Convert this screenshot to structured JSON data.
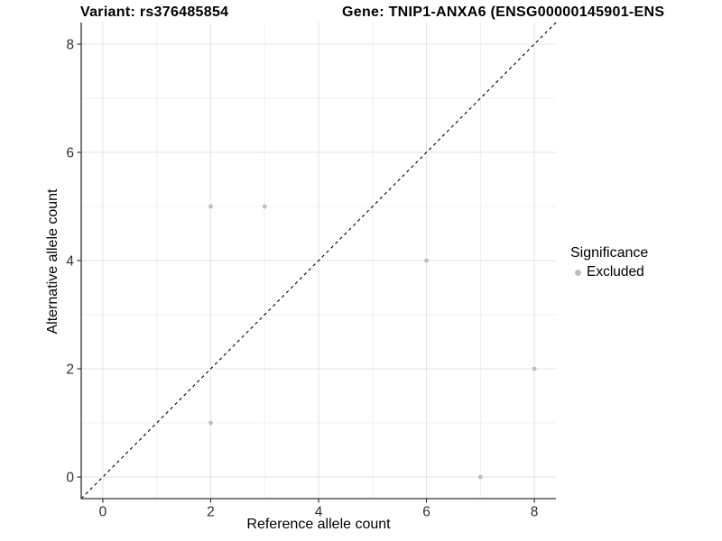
{
  "chart_data": {
    "type": "scatter",
    "title_left": "Variant: rs376485854",
    "title_right": "Gene: TNIP1-ANXA6 (ENSG00000145901-ENS",
    "xlabel": "Reference allele count",
    "ylabel": "Alternative allele count",
    "xlim": [
      -0.4,
      8.4
    ],
    "ylim": [
      -0.4,
      8.4
    ],
    "x_ticks": [
      0,
      2,
      4,
      6,
      8
    ],
    "y_ticks": [
      0,
      2,
      4,
      6,
      8
    ],
    "x_minor_ticks": [
      1,
      3,
      5,
      7
    ],
    "y_minor_ticks": [
      1,
      3,
      5,
      7
    ],
    "grid": true,
    "identity_line": {
      "style": "dashed",
      "from": [
        -0.4,
        -0.4
      ],
      "to": [
        8.4,
        8.4
      ],
      "color": "#000000"
    },
    "series": [
      {
        "name": "Excluded",
        "color": "#bebebe",
        "points": [
          [
            2,
            1
          ],
          [
            2,
            5
          ],
          [
            3,
            5
          ],
          [
            6,
            4
          ],
          [
            7,
            0
          ],
          [
            8,
            2
          ]
        ]
      }
    ],
    "legend": {
      "title": "Significance",
      "position": "right",
      "items": [
        {
          "label": "Excluded",
          "color": "#bebebe"
        }
      ]
    }
  },
  "colors": {
    "grid_major": "#e3e3e3",
    "grid_minor": "#f0f0f0",
    "axis_line": "#333333",
    "tick_text": "#303030",
    "point": "#bebebe"
  }
}
